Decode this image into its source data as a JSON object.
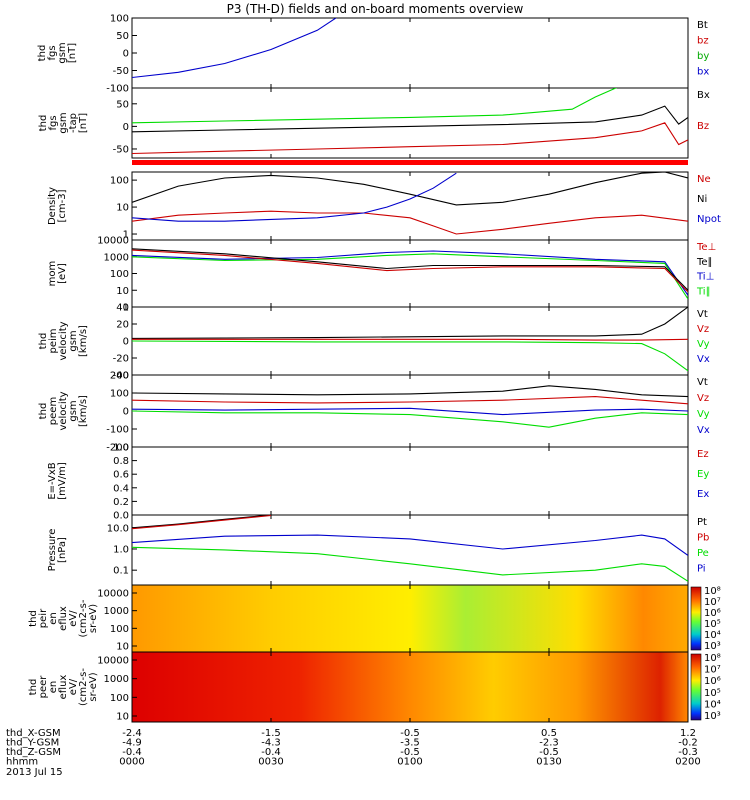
{
  "title": "P3 (TH-D) fields and on-board moments overview",
  "date": "2013 Jul 15",
  "colors": {
    "black": "#000000",
    "red": "#cc0000",
    "green": "#00dd00",
    "blue": "#0000cc",
    "bar": "#ff0000"
  },
  "chart_data": [
    {
      "type": "line",
      "ylabel": [
        "thd",
        "fgs",
        "gsm",
        "[nT]"
      ],
      "yticks": [
        "100",
        "50",
        "0",
        "-50",
        "-100"
      ],
      "legend": [
        {
          "name": "Bt",
          "color": "#000000"
        },
        {
          "name": "bz",
          "color": "#cc0000"
        },
        {
          "name": "by",
          "color": "#00aa00"
        },
        {
          "name": "bx",
          "color": "#0000cc"
        }
      ],
      "series": [
        {
          "name": "bx",
          "color": "#0000cc",
          "x": [
            0,
            10,
            20,
            30,
            40,
            48
          ],
          "y": [
            -70,
            -55,
            -30,
            10,
            65,
            135
          ]
        }
      ],
      "ylim": [
        -100,
        100
      ]
    },
    {
      "type": "line",
      "ylabel": [
        "thd",
        "fgs",
        "gsm",
        "-tap",
        "[nT]"
      ],
      "yticks": [
        "50",
        "0",
        "-50"
      ],
      "legend": [
        {
          "name": "Bx",
          "color": "#000000"
        },
        {
          "name": "Bz",
          "color": "#cc0000"
        }
      ],
      "series": [
        {
          "name": "green",
          "color": "#00dd00",
          "x": [
            0,
            20,
            40,
            60,
            80,
            95,
            100,
            110,
            120
          ],
          "y": [
            8,
            12,
            16,
            20,
            25,
            38,
            65,
            110,
            150
          ]
        },
        {
          "name": "Bx",
          "color": "#000000",
          "x": [
            0,
            20,
            40,
            60,
            80,
            100,
            110,
            115,
            118,
            120
          ],
          "y": [
            -12,
            -8,
            -4,
            0,
            4,
            10,
            25,
            45,
            5,
            20
          ]
        },
        {
          "name": "Bz",
          "color": "#cc0000",
          "x": [
            0,
            20,
            40,
            60,
            80,
            100,
            110,
            115,
            118,
            120
          ],
          "y": [
            -60,
            -55,
            -50,
            -45,
            -40,
            -25,
            -10,
            8,
            -40,
            -30
          ]
        }
      ],
      "ylim": [
        -70,
        85
      ]
    },
    {
      "type": "line",
      "ylabel": [
        "Density",
        "[cm-3]"
      ],
      "yscale": "log",
      "yticks": [
        "100",
        "10",
        "1"
      ],
      "legend": [
        {
          "name": "Ne",
          "color": "#cc0000"
        },
        {
          "name": "Ni",
          "color": "#000000"
        },
        {
          "name": "Npot",
          "color": "#0000cc"
        }
      ],
      "series": [
        {
          "name": "Ni",
          "color": "#000000",
          "x": [
            0,
            10,
            20,
            30,
            40,
            50,
            60,
            70,
            80,
            90,
            100,
            110,
            115,
            120
          ],
          "y": [
            15,
            60,
            120,
            150,
            120,
            70,
            30,
            12,
            15,
            30,
            80,
            180,
            200,
            120
          ]
        },
        {
          "name": "Ne",
          "color": "#cc0000",
          "x": [
            0,
            10,
            20,
            30,
            40,
            50,
            60,
            65,
            70,
            80,
            90,
            100,
            110,
            120
          ],
          "y": [
            3,
            5,
            6,
            7,
            6,
            6,
            4,
            2,
            1,
            1.5,
            2.5,
            4,
            5,
            3
          ]
        },
        {
          "name": "Npot",
          "color": "#0000cc",
          "x": [
            0,
            10,
            20,
            30,
            40,
            50,
            55,
            60,
            65,
            70
          ],
          "y": [
            4,
            3,
            3,
            3.5,
            4,
            6,
            10,
            20,
            50,
            180
          ]
        }
      ],
      "ylim": [
        0.6,
        200
      ]
    },
    {
      "type": "line",
      "ylabel": [
        "mom",
        "[eV]"
      ],
      "yscale": "log",
      "yticks": [
        "10000",
        "1000",
        "100",
        "10",
        "1"
      ],
      "legend": [
        {
          "name": "Te⊥",
          "color": "#cc0000"
        },
        {
          "name": "Te∥",
          "color": "#000000"
        },
        {
          "name": "Ti⊥",
          "color": "#0000cc"
        },
        {
          "name": "Ti∥",
          "color": "#00dd00"
        }
      ],
      "series": [
        {
          "name": "Ti⊥",
          "color": "#0000cc",
          "x": [
            0,
            20,
            40,
            55,
            65,
            80,
            100,
            115,
            120
          ],
          "y": [
            1200,
            700,
            900,
            1800,
            2200,
            1500,
            700,
            500,
            5
          ]
        },
        {
          "name": "Ti∥",
          "color": "#00dd00",
          "x": [
            0,
            20,
            40,
            55,
            65,
            80,
            100,
            115,
            120
          ],
          "y": [
            1000,
            600,
            700,
            1200,
            1500,
            1000,
            600,
            400,
            3
          ]
        },
        {
          "name": "Te∥",
          "color": "#000000",
          "x": [
            0,
            20,
            40,
            55,
            65,
            80,
            100,
            115,
            120
          ],
          "y": [
            3000,
            1500,
            500,
            200,
            300,
            300,
            300,
            250,
            10
          ]
        },
        {
          "name": "Te⊥",
          "color": "#cc0000",
          "x": [
            0,
            20,
            40,
            55,
            65,
            80,
            100,
            115,
            120
          ],
          "y": [
            2500,
            1200,
            400,
            150,
            200,
            250,
            250,
            200,
            8
          ]
        }
      ],
      "ylim": [
        1,
        10000
      ]
    },
    {
      "type": "line",
      "ylabel": [
        "thd",
        "peim",
        "velocity",
        "gsm",
        "[km/s]"
      ],
      "yticks": [
        "40",
        "20",
        "0",
        "-20",
        "-40"
      ],
      "legend": [
        {
          "name": "Vt",
          "color": "#000000"
        },
        {
          "name": "Vz",
          "color": "#cc0000"
        },
        {
          "name": "Vy",
          "color": "#00dd00"
        },
        {
          "name": "Vx",
          "color": "#0000cc"
        }
      ],
      "series": [
        {
          "name": "Vt",
          "color": "#000000",
          "x": [
            0,
            40,
            80,
            100,
            110,
            115,
            120
          ],
          "y": [
            3,
            4,
            6,
            6,
            8,
            20,
            40
          ]
        },
        {
          "name": "Vz",
          "color": "#cc0000",
          "x": [
            0,
            40,
            80,
            100,
            110,
            120
          ],
          "y": [
            2,
            2,
            2,
            1,
            1,
            2
          ]
        },
        {
          "name": "Vy",
          "color": "#00dd00",
          "x": [
            0,
            40,
            80,
            100,
            110,
            115,
            120
          ],
          "y": [
            0,
            -1,
            -1,
            -2,
            -3,
            -15,
            -35
          ]
        }
      ],
      "ylim": [
        -40,
        40
      ]
    },
    {
      "type": "line",
      "ylabel": [
        "thd",
        "peem",
        "velocity",
        "gsm",
        "[km/s]"
      ],
      "yticks": [
        "200",
        "100",
        "0",
        "-100",
        "-200"
      ],
      "legend": [
        {
          "name": "Vt",
          "color": "#000000"
        },
        {
          "name": "Vz",
          "color": "#cc0000"
        },
        {
          "name": "Vy",
          "color": "#00dd00"
        },
        {
          "name": "Vx",
          "color": "#0000cc"
        }
      ],
      "series": [
        {
          "name": "Vt",
          "color": "#000000",
          "x": [
            0,
            20,
            40,
            60,
            80,
            90,
            100,
            110,
            120
          ],
          "y": [
            100,
            95,
            90,
            95,
            110,
            140,
            120,
            90,
            80
          ]
        },
        {
          "name": "Vz",
          "color": "#cc0000",
          "x": [
            0,
            20,
            40,
            60,
            80,
            100,
            110,
            120
          ],
          "y": [
            60,
            50,
            45,
            50,
            60,
            80,
            60,
            40
          ]
        },
        {
          "name": "Vx",
          "color": "#0000cc",
          "x": [
            0,
            20,
            40,
            60,
            80,
            100,
            110,
            120
          ],
          "y": [
            10,
            5,
            10,
            15,
            -20,
            5,
            10,
            0
          ]
        },
        {
          "name": "Vy",
          "color": "#00dd00",
          "x": [
            0,
            20,
            40,
            60,
            80,
            90,
            100,
            110,
            120
          ],
          "y": [
            0,
            -10,
            -10,
            -20,
            -60,
            -90,
            -40,
            -10,
            -20
          ]
        }
      ],
      "ylim": [
        -200,
        200
      ]
    },
    {
      "type": "line",
      "ylabel": [
        "E=-VxB",
        "[mV/m]"
      ],
      "yticks": [
        "1.0",
        "0.8",
        "0.6",
        "0.4",
        "0.2",
        "0.0"
      ],
      "legend": [
        {
          "name": "Ez",
          "color": "#cc0000"
        },
        {
          "name": "Ey",
          "color": "#00dd00"
        },
        {
          "name": "Ex",
          "color": "#0000cc"
        }
      ],
      "series": [],
      "ylim": [
        0,
        1
      ]
    },
    {
      "type": "line",
      "ylabel": [
        "Pressure",
        "[nPa]"
      ],
      "yscale": "log",
      "yticks": [
        "10.0",
        "1.0",
        "0.1"
      ],
      "legend": [
        {
          "name": "Pt",
          "color": "#000000"
        },
        {
          "name": "Pb",
          "color": "#cc0000"
        },
        {
          "name": "Pe",
          "color": "#00dd00"
        },
        {
          "name": "Pi",
          "color": "#0000cc"
        }
      ],
      "series": [
        {
          "name": "Pt",
          "color": "#000000",
          "x": [
            0,
            10,
            20,
            30
          ],
          "y": [
            10,
            15,
            25,
            40
          ]
        },
        {
          "name": "Pb",
          "color": "#cc0000",
          "x": [
            0,
            10,
            20,
            30
          ],
          "y": [
            9,
            14,
            23,
            38
          ]
        },
        {
          "name": "Pi",
          "color": "#0000cc",
          "x": [
            0,
            20,
            40,
            60,
            80,
            100,
            110,
            115,
            120
          ],
          "y": [
            2,
            4,
            4.5,
            3,
            1,
            2.5,
            4.5,
            3,
            0.5
          ]
        },
        {
          "name": "Pe",
          "color": "#00dd00",
          "x": [
            0,
            20,
            40,
            60,
            80,
            100,
            110,
            115,
            120
          ],
          "y": [
            1.2,
            0.9,
            0.6,
            0.2,
            0.06,
            0.1,
            0.2,
            0.15,
            0.03
          ]
        }
      ],
      "ylim": [
        0.02,
        40
      ]
    },
    {
      "type": "heatmap",
      "ylabel": [
        "thd",
        "peir",
        "en",
        "eflux",
        "eV/",
        "(cm2-s-",
        "sr-eV)"
      ],
      "yscale": "log",
      "yticks": [
        "10000",
        "1000",
        "100",
        "10"
      ],
      "colorbar": [
        "10⁸",
        "10⁷",
        "10⁶",
        "10⁵",
        "10⁴",
        "10³"
      ]
    },
    {
      "type": "heatmap",
      "ylabel": [
        "thd",
        "peer",
        "en",
        "eflux",
        "eV/",
        "(cm2-s-",
        "sr-eV)"
      ],
      "yscale": "log",
      "yticks": [
        "10000",
        "1000",
        "100",
        "10"
      ],
      "colorbar": [
        "10⁸",
        "10⁷",
        "10⁶",
        "10⁵",
        "10⁴",
        "10³"
      ]
    }
  ],
  "orbit": {
    "rows": [
      {
        "label": "thd_X-GSM",
        "values": [
          "-2.4",
          "-1.5",
          "-0.5",
          "0.5",
          "1.2"
        ]
      },
      {
        "label": "thd_Y-GSM",
        "values": [
          "-4.9",
          "-4.3",
          "-3.5",
          "-2.3",
          "-0.2"
        ]
      },
      {
        "label": "thd_Z-GSM",
        "values": [
          "-0.4",
          "-0.4",
          "-0.5",
          "-0.5",
          "-0.3"
        ]
      },
      {
        "label": "hhmm",
        "values": [
          "0000",
          "0030",
          "0100",
          "0130",
          "0200"
        ]
      }
    ]
  }
}
